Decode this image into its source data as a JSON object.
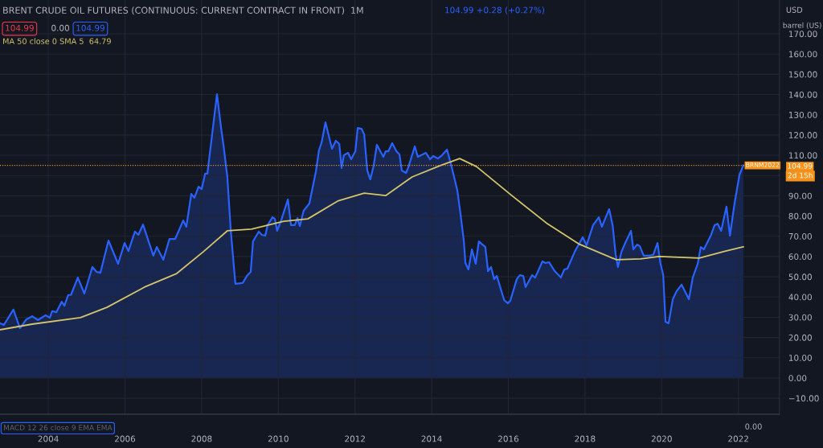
{
  "chart_data": {
    "type": "area",
    "title": "BRENT CRUDE OIL FUTURES (CONTINUOUS: CURRENT CONTRACT IN FRONT)  1M",
    "ylabel": "barrel (US)",
    "legend_title": "USD",
    "annotations": [
      "104.99 +0.28 (+0.27%)",
      "104.99",
      "0.00",
      "104.99",
      "MACD 12 26 close 9 EMA EMA",
      "0.00",
      "2d 15h",
      {
        "text": "BRNM2022",
        "x": 2022.13,
        "y": 104.99
      }
    ],
    "series": [
      {
        "name": null,
        "type": "area",
        "color": "#2962ff",
        "x": [
          2002.74,
          2002.84,
          2003.09,
          2003.26,
          2003.43,
          2003.58,
          2003.73,
          2003.93,
          2004.04,
          2004.1,
          2004.21,
          2004.35,
          2004.42,
          2004.52,
          2004.59,
          2004.77,
          2004.94,
          2005.15,
          2005.26,
          2005.36,
          2005.57,
          2005.82,
          2005.99,
          2006.09,
          2006.26,
          2006.35,
          2006.47,
          2006.74,
          2006.83,
          2007.0,
          2007.16,
          2007.31,
          2007.52,
          2007.6,
          2007.73,
          2007.81,
          2007.92,
          2008.0,
          2008.09,
          2008.15,
          2008.4,
          2008.51,
          2008.57,
          2008.67,
          2008.76,
          2008.88,
          2009.07,
          2009.18,
          2009.28,
          2009.34,
          2009.49,
          2009.57,
          2009.66,
          2009.72,
          2009.85,
          2009.91,
          2009.97,
          2010.08,
          2010.25,
          2010.33,
          2010.43,
          2010.5,
          2010.56,
          2010.66,
          2010.81,
          2010.98,
          2011.06,
          2011.13,
          2011.23,
          2011.4,
          2011.5,
          2011.59,
          2011.65,
          2011.71,
          2011.82,
          2011.9,
          2012.01,
          2012.07,
          2012.17,
          2012.24,
          2012.32,
          2012.4,
          2012.49,
          2012.57,
          2012.74,
          2012.8,
          2012.87,
          2012.97,
          2013.08,
          2013.16,
          2013.22,
          2013.33,
          2013.39,
          2013.56,
          2013.64,
          2013.85,
          2013.96,
          2014.04,
          2014.16,
          2014.27,
          2014.4,
          2014.52,
          2014.67,
          2014.75,
          2014.84,
          2014.88,
          2014.96,
          2015.05,
          2015.15,
          2015.23,
          2015.4,
          2015.47,
          2015.55,
          2015.63,
          2015.7,
          2015.89,
          2015.99,
          2016.05,
          2016.22,
          2016.3,
          2016.39,
          2016.45,
          2016.62,
          2016.7,
          2016.89,
          2016.97,
          2017.06,
          2017.21,
          2017.37,
          2017.46,
          2017.54,
          2017.73,
          2017.94,
          2018.04,
          2018.21,
          2018.36,
          2018.44,
          2018.63,
          2018.72,
          2018.8,
          2018.86,
          2018.95,
          2019.05,
          2019.2,
          2019.26,
          2019.36,
          2019.43,
          2019.53,
          2019.68,
          2019.78,
          2019.89,
          2019.97,
          2020.04,
          2020.1,
          2020.18,
          2020.29,
          2020.39,
          2020.52,
          2020.71,
          2020.81,
          2020.94,
          2021.02,
          2021.1,
          2021.29,
          2021.38,
          2021.46,
          2021.55,
          2021.69,
          2021.78,
          2021.9,
          2022.03,
          2022.13
        ],
        "values": [
          27.1,
          26.2,
          33.8,
          24.6,
          29,
          30.5,
          28.6,
          31,
          29.8,
          33,
          32.5,
          37.7,
          35.7,
          41,
          41,
          49.6,
          41.7,
          54.8,
          52.4,
          52,
          67.9,
          56.4,
          66.7,
          62.7,
          72.3,
          70.7,
          75.8,
          60.4,
          64.7,
          58.4,
          68.7,
          68.7,
          77.8,
          74.7,
          90.9,
          89,
          94.5,
          93.3,
          100.9,
          100.9,
          140.2,
          123,
          115,
          99.3,
          72.7,
          46.5,
          46.9,
          50.4,
          52.4,
          67.5,
          72.3,
          70.7,
          70.3,
          75.5,
          79.4,
          78.6,
          72.7,
          78.2,
          88.2,
          75.5,
          75.5,
          79,
          75,
          82.6,
          86.2,
          102,
          112.4,
          116.4,
          126.3,
          113.2,
          117.2,
          115.6,
          103.7,
          110,
          111.2,
          108,
          112,
          123.5,
          123.1,
          120.3,
          102.5,
          98.1,
          105.2,
          115.2,
          109.2,
          112,
          112,
          116,
          112,
          110.4,
          102.5,
          101.3,
          104,
          114.4,
          109.2,
          111.2,
          108,
          109.6,
          108.4,
          110,
          112.8,
          104.4,
          92.5,
          81.4,
          67.5,
          56.8,
          53.6,
          63.5,
          56.4,
          67.5,
          64.7,
          52.8,
          54.8,
          48.8,
          50.4,
          38.5,
          36.9,
          38.1,
          48.8,
          50.8,
          50.4,
          44.9,
          50.8,
          49.6,
          57.6,
          56.8,
          57.2,
          52.8,
          49.6,
          53.6,
          54,
          62.3,
          69.5,
          65.5,
          75.5,
          79.4,
          74.7,
          83.4,
          75.5,
          60.8,
          54.8,
          62.3,
          66.7,
          72.7,
          63.5,
          65.9,
          65.1,
          60.4,
          60.4,
          60.8,
          66.7,
          56.4,
          50.8,
          27.8,
          27,
          38.9,
          42.9,
          46.1,
          38.9,
          49.6,
          56.4,
          64.7,
          63.5,
          70.7,
          75.5,
          76.2,
          72.7,
          84.6,
          70.3,
          86.2,
          100.5,
          104.99
        ]
      },
      {
        "name": "MA 50 close 0 SMA 5  64.79",
        "type": "line",
        "color": "#d4c46a",
        "x": [
          2002.74,
          2003.58,
          2004.84,
          2005.53,
          2006.51,
          2007.35,
          2008.04,
          2008.67,
          2009.3,
          2010.14,
          2010.77,
          2011.55,
          2012.24,
          2012.8,
          2013.49,
          2014.21,
          2014.73,
          2015.17,
          2016.09,
          2016.99,
          2017.83,
          2018.82,
          2019.45,
          2019.93,
          2020.98,
          2021.67,
          2022.13
        ],
        "values": [
          23.8,
          26.6,
          29.8,
          34.9,
          44.9,
          51.6,
          62.3,
          72.7,
          73.5,
          77.4,
          78.6,
          87.4,
          91.3,
          90.1,
          99.3,
          104.8,
          108.4,
          104.4,
          90.1,
          76.6,
          66.3,
          58.4,
          58.8,
          60,
          59.2,
          62.7,
          64.79
        ]
      }
    ],
    "ref_lines": [
      {
        "axis": "y",
        "value": 104.99,
        "label": "104.99",
        "color": "#f7931a",
        "line_style": "dotted"
      }
    ],
    "xlim": [
      2002.74,
      2023.07
    ],
    "xticks": [
      2004,
      2006,
      2008,
      2010,
      2012,
      2014,
      2016,
      2018,
      2020,
      2022
    ],
    "ylim": [
      -17.9,
      186.7
    ],
    "yticks": [
      {
        "value": -10,
        "label": "−10.00"
      },
      {
        "value": 0,
        "label": "0.00"
      },
      {
        "value": 10,
        "label": "10.00"
      },
      {
        "value": 20,
        "label": "20.00"
      },
      {
        "value": 30,
        "label": "30.00"
      },
      {
        "value": 40,
        "label": "40.00"
      },
      {
        "value": 50,
        "label": "50.00"
      },
      {
        "value": 60,
        "label": "60.00"
      },
      {
        "value": 70,
        "label": "70.00"
      },
      {
        "value": 80,
        "label": "80.00"
      },
      {
        "value": 90,
        "label": "90.00"
      },
      {
        "value": 100,
        "label": null
      },
      {
        "value": 110,
        "label": "110.00"
      },
      {
        "value": 120,
        "label": "120.00"
      },
      {
        "value": 130,
        "label": "130.00"
      },
      {
        "value": 140,
        "label": "140.00"
      },
      {
        "value": 150,
        "label": "150.00"
      },
      {
        "value": 160,
        "label": "160.00"
      },
      {
        "value": 170,
        "label": "170.00"
      }
    ],
    "grid": true
  }
}
